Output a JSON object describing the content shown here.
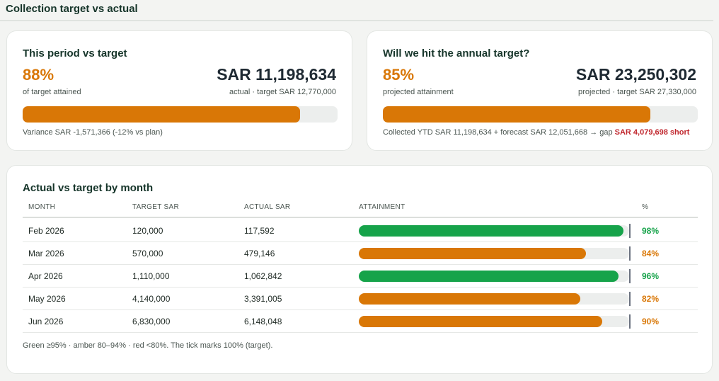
{
  "page": {
    "title": "Collection target vs actual"
  },
  "period_card": {
    "title": "This period vs target",
    "pct": "88%",
    "pct_sub": "of target attained",
    "amount": "SAR 11,198,634",
    "amount_sub": "actual · target SAR 12,770,000",
    "progress": 0.88,
    "bar_color": "#d97706",
    "note": "Variance SAR -1,571,366 (-12% vs plan)"
  },
  "annual_card": {
    "title": "Will we hit the annual target?",
    "pct": "85%",
    "pct_sub": "projected attainment",
    "amount": "SAR 23,250,302",
    "amount_sub": "projected · target SAR 27,330,000",
    "progress": 0.85,
    "bar_color": "#d97706",
    "note_prefix": "Collected YTD SAR 11,198,634 + forecast SAR 12,051,668 → gap ",
    "note_short": "SAR 4,079,698 short"
  },
  "monthly": {
    "title": "Actual vs target by month",
    "columns": {
      "month": "MONTH",
      "target": "TARGET SAR",
      "actual": "ACTUAL SAR",
      "attainment": "ATTAINMENT",
      "pct": "%"
    },
    "rows": [
      {
        "month": "Feb 2026",
        "target": "120,000",
        "actual": "117,592",
        "pct": "98%",
        "value": 0.98,
        "color": "#16a34a"
      },
      {
        "month": "Mar 2026",
        "target": "570,000",
        "actual": "479,146",
        "pct": "84%",
        "value": 0.84,
        "color": "#d97706"
      },
      {
        "month": "Apr 2026",
        "target": "1,110,000",
        "actual": "1,062,842",
        "pct": "96%",
        "value": 0.96,
        "color": "#16a34a"
      },
      {
        "month": "May 2026",
        "target": "4,140,000",
        "actual": "3,391,005",
        "pct": "82%",
        "value": 0.82,
        "color": "#d97706"
      },
      {
        "month": "Jun 2026",
        "target": "6,830,000",
        "actual": "6,148,048",
        "pct": "90%",
        "value": 0.9,
        "color": "#d97706"
      }
    ],
    "legend": "Green ≥95% · amber 80–94% · red <80%. The tick marks 100% (target)."
  }
}
